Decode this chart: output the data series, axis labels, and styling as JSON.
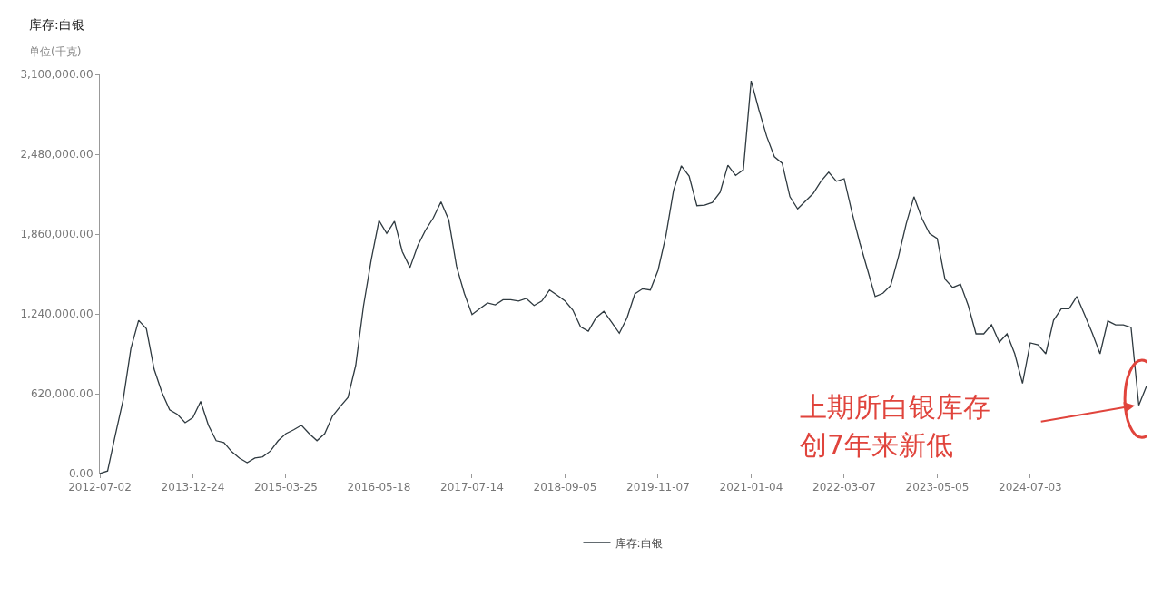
{
  "chart_data": {
    "type": "line",
    "title": "库存:白银",
    "ylabel": "单位(千克)",
    "categories": [
      "2012-07-02",
      null,
      null,
      null,
      null,
      null,
      null,
      null,
      null,
      null,
      null,
      null,
      "2013-12-24",
      null,
      null,
      null,
      null,
      null,
      null,
      null,
      null,
      null,
      null,
      null,
      "2015-03-25",
      null,
      null,
      null,
      null,
      null,
      null,
      null,
      null,
      null,
      null,
      null,
      "2016-05-18",
      null,
      null,
      null,
      null,
      null,
      null,
      null,
      null,
      null,
      null,
      null,
      "2017-07-14",
      null,
      null,
      null,
      null,
      null,
      null,
      null,
      null,
      null,
      null,
      null,
      "2018-09-05",
      null,
      null,
      null,
      null,
      null,
      null,
      null,
      null,
      null,
      null,
      null,
      "2019-11-07",
      null,
      null,
      null,
      null,
      null,
      null,
      null,
      null,
      null,
      null,
      null,
      "2021-01-04",
      null,
      null,
      null,
      null,
      null,
      null,
      null,
      null,
      null,
      null,
      null,
      "2022-03-07",
      null,
      null,
      null,
      null,
      null,
      null,
      null,
      null,
      null,
      null,
      null,
      "2023-05-05",
      null,
      null,
      null,
      null,
      null,
      null,
      null,
      null,
      null,
      null,
      null,
      "2024-07-03",
      null,
      null,
      null,
      null,
      null,
      null,
      null,
      null,
      null,
      null,
      null,
      null,
      null,
      null,
      null
    ],
    "series": [
      {
        "name": "库存:白银",
        "color": "#2f3a40",
        "values": [
          0,
          20000,
          300000,
          570000,
          970000,
          1190000,
          1125000,
          810000,
          630000,
          495000,
          460000,
          395000,
          435000,
          560000,
          375000,
          255000,
          240000,
          170000,
          120000,
          85000,
          120000,
          130000,
          175000,
          255000,
          310000,
          340000,
          375000,
          310000,
          255000,
          310000,
          445000,
          520000,
          590000,
          840000,
          1300000,
          1660000,
          1965000,
          1865000,
          1960000,
          1725000,
          1600000,
          1770000,
          1890000,
          1985000,
          2110000,
          1970000,
          1610000,
          1400000,
          1235000,
          1280000,
          1325000,
          1310000,
          1350000,
          1350000,
          1340000,
          1360000,
          1305000,
          1340000,
          1425000,
          1385000,
          1340000,
          1270000,
          1140000,
          1105000,
          1210000,
          1260000,
          1175000,
          1090000,
          1210000,
          1395000,
          1435000,
          1425000,
          1580000,
          1845000,
          2200000,
          2390000,
          2310000,
          2080000,
          2085000,
          2105000,
          2185000,
          2395000,
          2315000,
          2360000,
          3050000,
          2825000,
          2620000,
          2460000,
          2410000,
          2150000,
          2055000,
          2115000,
          2175000,
          2270000,
          2340000,
          2270000,
          2290000,
          2030000,
          1795000,
          1585000,
          1375000,
          1400000,
          1460000,
          1685000,
          1940000,
          2150000,
          1985000,
          1865000,
          1825000,
          1510000,
          1445000,
          1470000,
          1305000,
          1085000,
          1085000,
          1155000,
          1020000,
          1085000,
          930000,
          700000,
          1015000,
          1000000,
          930000,
          1190000,
          1280000,
          1280000,
          1375000,
          1235000,
          1090000,
          930000,
          1185000,
          1155000,
          1155000,
          1135000,
          530000,
          680000
        ]
      }
    ],
    "ylim": [
      0,
      3100000
    ],
    "yticks": [
      {
        "value": 0,
        "label": "0.00"
      },
      {
        "value": 620000,
        "label": "620,000.00"
      },
      {
        "value": 1240000,
        "label": "1,240,000.00"
      },
      {
        "value": 1860000,
        "label": "1,860,000.00"
      },
      {
        "value": 2480000,
        "label": "2,480,000.00"
      },
      {
        "value": 3100000,
        "label": "3,100,000.00"
      }
    ],
    "annotations": [
      "上期所白银库存",
      "创7年来新低"
    ],
    "legend": "bottom"
  }
}
